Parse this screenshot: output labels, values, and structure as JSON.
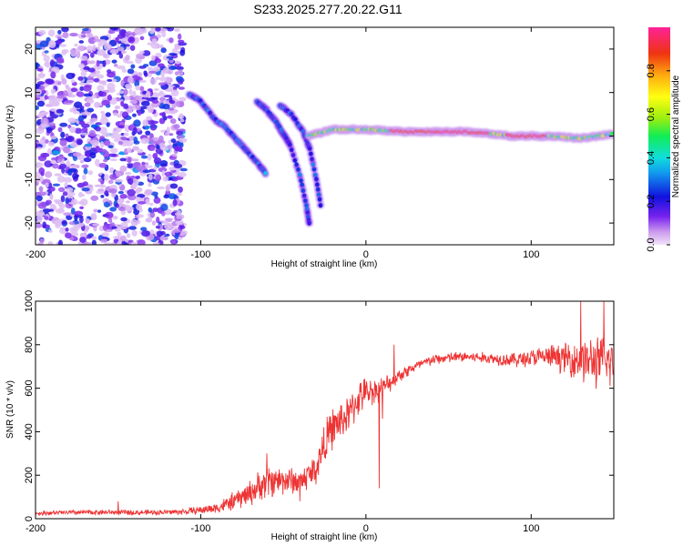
{
  "title": "S233.2025.277.20.22.G11",
  "chart_data": [
    {
      "type": "heatmap",
      "title": "S233.2025.277.20.22.G11",
      "xlabel": "Height of straight line (km)",
      "ylabel": "Frequency (Hz)",
      "xlim": [
        -200,
        150
      ],
      "ylim": [
        -25,
        25
      ],
      "x_ticks": [
        "-200",
        "-100",
        "0",
        "100"
      ],
      "x_tick_values": [
        -200,
        -100,
        0,
        100
      ],
      "y_ticks": [
        "20",
        "10",
        "0",
        "-10",
        "-20"
      ],
      "y_tick_values": [
        20,
        10,
        0,
        -10,
        -20
      ],
      "colorbar": {
        "label": "Normalized spectral amplitude",
        "range": [
          0,
          1
        ],
        "ticks": [
          "0.0",
          "0.2",
          "0.4",
          "0.6",
          "0.8"
        ],
        "tick_values": [
          0.0,
          0.2,
          0.4,
          0.6,
          0.8
        ]
      },
      "features": [
        {
          "name": "scattered noise",
          "x_range": [
            -200,
            -110
          ],
          "freq_range": [
            -25,
            25
          ],
          "amplitude": 0.1
        },
        {
          "name": "arc 1",
          "points": [
            [
              -107,
              9.5
            ],
            [
              -100,
              8
            ],
            [
              -92,
              4
            ],
            [
              -85,
              2
            ],
            [
              -78,
              -1
            ],
            [
              -72,
              -3.5
            ],
            [
              -65,
              -6.5
            ],
            [
              -60,
              -9
            ]
          ],
          "amplitude": 0.35
        },
        {
          "name": "arc 2",
          "points": [
            [
              -66,
              8
            ],
            [
              -60,
              6
            ],
            [
              -54,
              3
            ],
            [
              -50,
              0.5
            ],
            [
              -46,
              -2
            ],
            [
              -40,
              -9
            ],
            [
              -36,
              -16
            ],
            [
              -34,
              -21
            ]
          ],
          "amplitude": 0.3
        },
        {
          "name": "arc 3",
          "points": [
            [
              -52,
              7
            ],
            [
              -45,
              5
            ],
            [
              -38,
              1
            ],
            [
              -34,
              -3
            ],
            [
              -30,
              -10
            ],
            [
              -27,
              -17
            ]
          ],
          "amplitude": 0.3
        },
        {
          "name": "main signal line",
          "points": [
            [
              -35,
              0
            ],
            [
              -20,
              1.5
            ],
            [
              0,
              1.5
            ],
            [
              25,
              1
            ],
            [
              60,
              1
            ],
            [
              90,
              0
            ],
            [
              110,
              0
            ],
            [
              130,
              -0.5
            ],
            [
              150,
              0.5
            ]
          ],
          "amplitude": 0.95
        }
      ]
    },
    {
      "type": "line",
      "xlabel": "Height of straight line (km)",
      "ylabel": "SNR (10 * v/v)",
      "xlim": [
        -200,
        150
      ],
      "ylim": [
        0,
        1000
      ],
      "x_ticks": [
        "-200",
        "-100",
        "0",
        "100"
      ],
      "x_tick_values": [
        -200,
        -100,
        0,
        100
      ],
      "y_ticks": [
        "0",
        "200",
        "400",
        "600",
        "800",
        "1000"
      ],
      "y_tick_values": [
        0,
        200,
        400,
        600,
        800,
        1000
      ],
      "series": [
        {
          "name": "SNR",
          "color": "#ee3333",
          "x": [
            -200,
            -180,
            -160,
            -140,
            -120,
            -110,
            -100,
            -90,
            -80,
            -70,
            -60,
            -50,
            -40,
            -30,
            -25,
            -20,
            -15,
            -10,
            -5,
            0,
            10,
            20,
            30,
            40,
            50,
            60,
            70,
            80,
            90,
            100,
            110,
            120,
            130,
            140,
            150
          ],
          "mean": [
            25,
            28,
            30,
            28,
            30,
            32,
            40,
            50,
            80,
            120,
            170,
            180,
            170,
            230,
            350,
            420,
            450,
            480,
            550,
            580,
            600,
            660,
            700,
            730,
            740,
            745,
            740,
            735,
            730,
            740,
            745,
            740,
            730,
            720,
            720
          ],
          "spread": [
            12,
            14,
            15,
            14,
            15,
            18,
            22,
            30,
            50,
            70,
            90,
            80,
            70,
            90,
            110,
            110,
            110,
            100,
            100,
            80,
            60,
            40,
            30,
            30,
            30,
            30,
            30,
            35,
            40,
            50,
            60,
            80,
            120,
            140,
            140
          ],
          "peaks": [
            [
              -150,
              80
            ],
            [
              -60,
              300
            ],
            [
              -40,
              80
            ],
            [
              8,
              140
            ],
            [
              10,
              460
            ],
            [
              17,
              800
            ],
            [
              130,
              1000
            ],
            [
              144,
              1000
            ]
          ]
        }
      ]
    }
  ]
}
